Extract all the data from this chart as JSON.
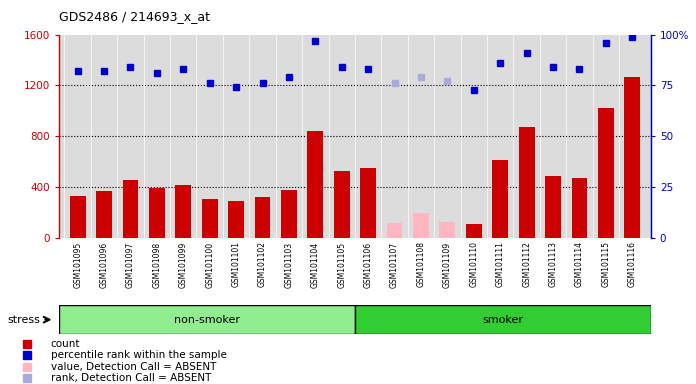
{
  "title": "GDS2486 / 214693_x_at",
  "samples": [
    "GSM101095",
    "GSM101096",
    "GSM101097",
    "GSM101098",
    "GSM101099",
    "GSM101100",
    "GSM101101",
    "GSM101102",
    "GSM101103",
    "GSM101104",
    "GSM101105",
    "GSM101106",
    "GSM101107",
    "GSM101108",
    "GSM101109",
    "GSM101110",
    "GSM101111",
    "GSM101112",
    "GSM101113",
    "GSM101114",
    "GSM101115",
    "GSM101116"
  ],
  "count_values": [
    330,
    370,
    460,
    390,
    420,
    310,
    290,
    320,
    380,
    840,
    530,
    550,
    null,
    null,
    null,
    110,
    610,
    870,
    490,
    470,
    1020,
    1270
  ],
  "absent_count": [
    null,
    null,
    null,
    null,
    null,
    null,
    null,
    null,
    null,
    null,
    null,
    null,
    120,
    200,
    130,
    null,
    null,
    null,
    null,
    null,
    null,
    null
  ],
  "rank_values": [
    82,
    82,
    84,
    81,
    83,
    76,
    74,
    76,
    79,
    97,
    84,
    83,
    null,
    null,
    null,
    73,
    86,
    91,
    84,
    83,
    96,
    99
  ],
  "absent_rank": [
    null,
    null,
    null,
    null,
    null,
    null,
    null,
    null,
    null,
    null,
    null,
    null,
    76,
    79,
    77,
    null,
    null,
    null,
    null,
    null,
    null,
    null
  ],
  "group_labels": [
    "non-smoker",
    "smoker"
  ],
  "group_ranges": [
    [
      0,
      11
    ],
    [
      11,
      22
    ]
  ],
  "group_colors": [
    "#90EE90",
    "#32CD32"
  ],
  "ylim_left": [
    0,
    1600
  ],
  "ylim_right": [
    0,
    100
  ],
  "yticks_left": [
    0,
    400,
    800,
    1200,
    1600
  ],
  "yticks_right": [
    0,
    25,
    50,
    75,
    100
  ],
  "yticklabels_right": [
    "0",
    "25",
    "50",
    "75",
    "100%"
  ],
  "bar_color": "#CC0000",
  "absent_bar_color": "#FFB6C1",
  "rank_dot_color": "#0000CC",
  "absent_rank_dot_color": "#AAAADD",
  "background_color": "#DCDCDC",
  "tick_area_color": "#C0C0C0",
  "legend_items": [
    {
      "label": "count",
      "color": "#CC0000"
    },
    {
      "label": "percentile rank within the sample",
      "color": "#0000CC"
    },
    {
      "label": "value, Detection Call = ABSENT",
      "color": "#FFB6C1"
    },
    {
      "label": "rank, Detection Call = ABSENT",
      "color": "#AAAADD"
    }
  ]
}
